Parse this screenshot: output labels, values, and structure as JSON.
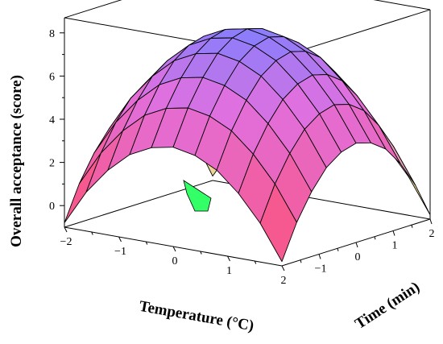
{
  "chart_data": {
    "type": "surface",
    "title": "",
    "xlabel": "Temperature (°C)",
    "ylabel": "Time (min)",
    "zlabel": "Overall acceptance (score)",
    "xlim": [
      -2,
      2
    ],
    "ylim": [
      -2,
      2
    ],
    "zlim": [
      -1,
      8.7
    ],
    "x_ticks": [
      "−2",
      "−1",
      "0",
      "1",
      "2"
    ],
    "y_ticks": [
      "−1",
      "0",
      "1",
      "2"
    ],
    "z_ticks": [
      "0",
      "2",
      "4",
      "6",
      "8"
    ],
    "grid_x": [
      -2,
      -1.6,
      -1.2,
      -0.8,
      -0.4,
      0,
      0.4,
      0.8,
      1.2,
      1.6,
      2
    ],
    "grid_y": [
      -2,
      -1.6,
      -1.2,
      -0.8,
      -0.4,
      0,
      0.4,
      0.8,
      1.2,
      1.6,
      2
    ],
    "z_values": [
      [
        -0.8,
        0.8,
        2.0,
        2.9,
        3.4,
        3.6,
        3.4,
        2.9,
        2.0,
        0.8,
        -0.8
      ],
      [
        0.8,
        2.4,
        3.6,
        4.5,
        5.0,
        5.2,
        5.0,
        4.5,
        3.6,
        2.4,
        0.8
      ],
      [
        2.0,
        3.6,
        4.8,
        5.7,
        6.2,
        6.4,
        6.2,
        5.7,
        4.8,
        3.6,
        2.0
      ],
      [
        2.9,
        4.5,
        5.7,
        6.6,
        7.1,
        7.3,
        7.1,
        6.6,
        5.7,
        4.5,
        2.9
      ],
      [
        3.4,
        5.0,
        6.2,
        7.1,
        7.6,
        7.8,
        7.6,
        7.1,
        6.2,
        5.0,
        3.4
      ],
      [
        3.6,
        5.2,
        6.4,
        7.3,
        7.8,
        8.0,
        7.8,
        7.3,
        6.4,
        5.2,
        3.6
      ],
      [
        3.4,
        5.0,
        6.2,
        7.1,
        7.6,
        7.8,
        7.6,
        7.1,
        6.2,
        5.0,
        3.4
      ],
      [
        2.9,
        4.5,
        5.7,
        6.6,
        7.1,
        7.3,
        7.1,
        6.6,
        5.7,
        4.5,
        2.9
      ],
      [
        2.0,
        3.6,
        4.8,
        5.7,
        6.2,
        6.4,
        6.2,
        5.7,
        4.8,
        3.6,
        2.0
      ],
      [
        0.8,
        2.4,
        3.6,
        4.5,
        5.0,
        5.2,
        5.0,
        4.5,
        3.6,
        2.4,
        0.8
      ],
      [
        -0.8,
        0.8,
        2.0,
        2.9,
        3.4,
        3.6,
        3.4,
        2.9,
        2.0,
        0.8,
        -0.8
      ]
    ],
    "colors": {
      "high": "#7f7fff",
      "mid": "#e070e0",
      "low_front": "#ff5070",
      "low_right": "#f0f080",
      "underside": "#33ff66",
      "mesh": "#000000"
    },
    "grid": false,
    "legend": "none"
  }
}
